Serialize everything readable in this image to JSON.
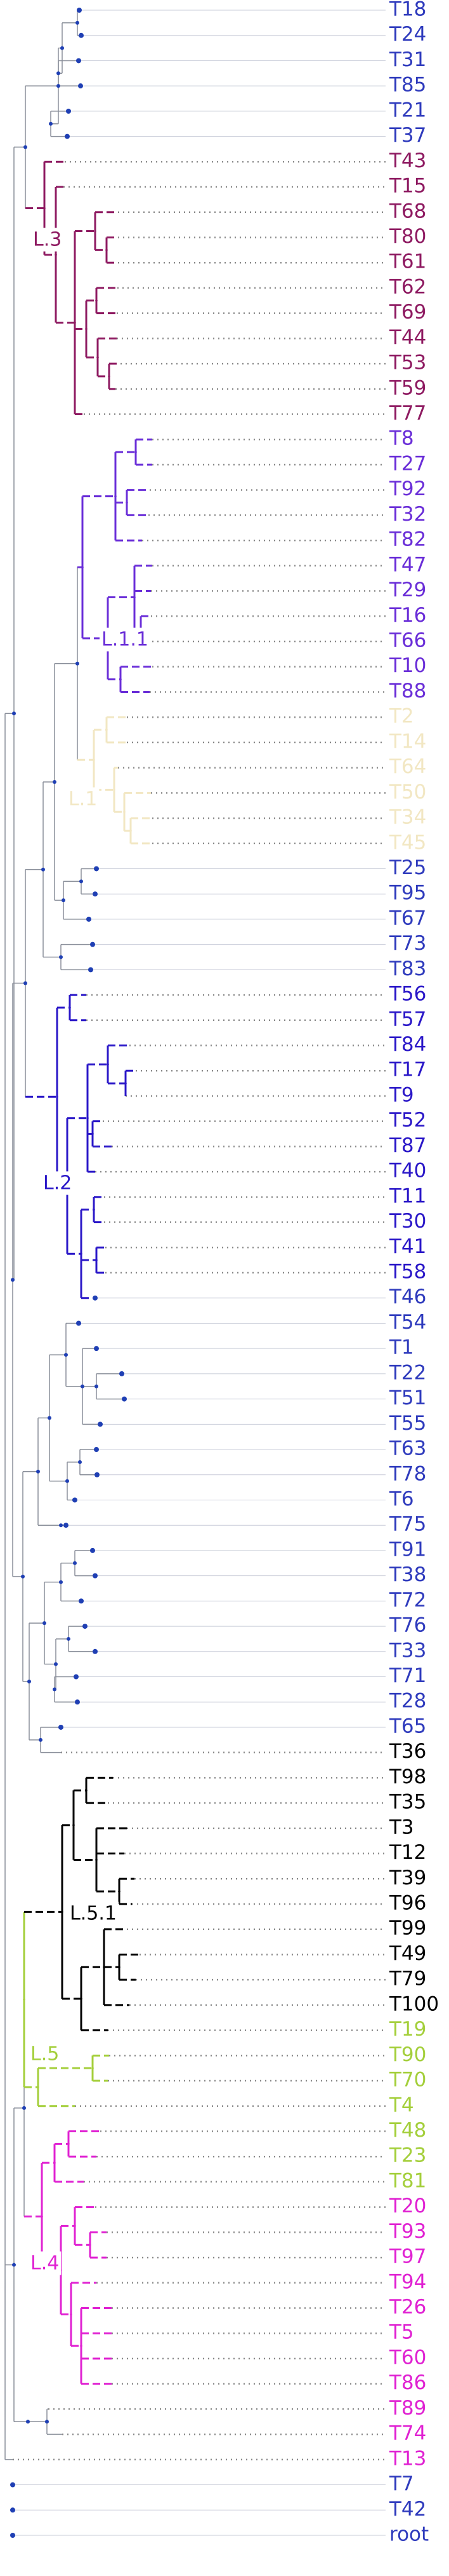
{
  "colors": {
    "default": "#2f3bbd",
    "L.3": "#8e1a61",
    "L.1.1": "#6a2ed8",
    "L.1": "#f2e7c3",
    "L.2": "#2a17c8",
    "L.5.1": "#000000",
    "L.5": "#a4cf3b",
    "L.4": "#e021d2",
    "node_dot": "#1f3fb4",
    "guide": "#c8ccd8",
    "stem": "#8a8f9a"
  },
  "clade_labels": [
    {
      "name": "L.3",
      "text": "L.3"
    },
    {
      "name": "L.1.1",
      "text": "L.1.1"
    },
    {
      "name": "L.1",
      "text": "L.1"
    },
    {
      "name": "L.2",
      "text": "L.2"
    },
    {
      "name": "L.5.1",
      "text": "L.5.1"
    },
    {
      "name": "L.5",
      "text": "L.5"
    },
    {
      "name": "L.4",
      "text": "L.4"
    }
  ],
  "tips": [
    {
      "label": "T18",
      "clade": "default"
    },
    {
      "label": "T24",
      "clade": "default"
    },
    {
      "label": "T31",
      "clade": "default"
    },
    {
      "label": "T85",
      "clade": "default"
    },
    {
      "label": "T21",
      "clade": "default"
    },
    {
      "label": "T37",
      "clade": "default"
    },
    {
      "label": "T43",
      "clade": "L.3"
    },
    {
      "label": "T15",
      "clade": "L.3"
    },
    {
      "label": "T68",
      "clade": "L.3"
    },
    {
      "label": "T80",
      "clade": "L.3"
    },
    {
      "label": "T61",
      "clade": "L.3"
    },
    {
      "label": "T62",
      "clade": "L.3"
    },
    {
      "label": "T69",
      "clade": "L.3"
    },
    {
      "label": "T44",
      "clade": "L.3"
    },
    {
      "label": "T53",
      "clade": "L.3"
    },
    {
      "label": "T59",
      "clade": "L.3"
    },
    {
      "label": "T77",
      "clade": "L.3"
    },
    {
      "label": "T8",
      "clade": "L.1.1"
    },
    {
      "label": "T27",
      "clade": "L.1.1"
    },
    {
      "label": "T92",
      "clade": "L.1.1"
    },
    {
      "label": "T32",
      "clade": "L.1.1"
    },
    {
      "label": "T82",
      "clade": "L.1.1"
    },
    {
      "label": "T47",
      "clade": "L.1.1"
    },
    {
      "label": "T29",
      "clade": "L.1.1"
    },
    {
      "label": "T16",
      "clade": "L.1.1"
    },
    {
      "label": "T66",
      "clade": "L.1.1"
    },
    {
      "label": "T10",
      "clade": "L.1.1"
    },
    {
      "label": "T88",
      "clade": "L.1.1"
    },
    {
      "label": "T2",
      "clade": "L.1"
    },
    {
      "label": "T14",
      "clade": "L.1"
    },
    {
      "label": "T64",
      "clade": "L.1"
    },
    {
      "label": "T50",
      "clade": "L.1"
    },
    {
      "label": "T34",
      "clade": "L.1"
    },
    {
      "label": "T45",
      "clade": "L.1"
    },
    {
      "label": "T25",
      "clade": "default"
    },
    {
      "label": "T95",
      "clade": "default"
    },
    {
      "label": "T67",
      "clade": "default"
    },
    {
      "label": "T73",
      "clade": "default"
    },
    {
      "label": "T83",
      "clade": "default"
    },
    {
      "label": "T56",
      "clade": "L.2"
    },
    {
      "label": "T57",
      "clade": "L.2"
    },
    {
      "label": "T84",
      "clade": "L.2"
    },
    {
      "label": "T17",
      "clade": "L.2"
    },
    {
      "label": "T9",
      "clade": "L.2"
    },
    {
      "label": "T52",
      "clade": "L.2"
    },
    {
      "label": "T87",
      "clade": "L.2"
    },
    {
      "label": "T40",
      "clade": "L.2"
    },
    {
      "label": "T11",
      "clade": "L.2"
    },
    {
      "label": "T30",
      "clade": "L.2"
    },
    {
      "label": "T41",
      "clade": "L.2"
    },
    {
      "label": "T58",
      "clade": "L.2"
    },
    {
      "label": "T46",
      "clade": "default"
    },
    {
      "label": "T54",
      "clade": "default"
    },
    {
      "label": "T1",
      "clade": "default"
    },
    {
      "label": "T22",
      "clade": "default"
    },
    {
      "label": "T51",
      "clade": "default"
    },
    {
      "label": "T55",
      "clade": "default"
    },
    {
      "label": "T63",
      "clade": "default"
    },
    {
      "label": "T78",
      "clade": "default"
    },
    {
      "label": "T6",
      "clade": "default"
    },
    {
      "label": "T75",
      "clade": "default"
    },
    {
      "label": "T91",
      "clade": "default"
    },
    {
      "label": "T38",
      "clade": "default"
    },
    {
      "label": "T72",
      "clade": "default"
    },
    {
      "label": "T76",
      "clade": "default"
    },
    {
      "label": "T33",
      "clade": "default"
    },
    {
      "label": "T71",
      "clade": "default"
    },
    {
      "label": "T28",
      "clade": "default"
    },
    {
      "label": "T65",
      "clade": "default"
    },
    {
      "label": "T36",
      "clade": "L.5.1"
    },
    {
      "label": "T98",
      "clade": "L.5.1"
    },
    {
      "label": "T35",
      "clade": "L.5.1"
    },
    {
      "label": "T3",
      "clade": "L.5.1"
    },
    {
      "label": "T12",
      "clade": "L.5.1"
    },
    {
      "label": "T39",
      "clade": "L.5.1"
    },
    {
      "label": "T96",
      "clade": "L.5.1"
    },
    {
      "label": "T99",
      "clade": "L.5.1"
    },
    {
      "label": "T49",
      "clade": "L.5.1"
    },
    {
      "label": "T79",
      "clade": "L.5.1"
    },
    {
      "label": "T100",
      "clade": "L.5.1"
    },
    {
      "label": "T19",
      "clade": "L.5"
    },
    {
      "label": "T90",
      "clade": "L.5"
    },
    {
      "label": "T70",
      "clade": "L.5"
    },
    {
      "label": "T4",
      "clade": "L.5"
    },
    {
      "label": "T48",
      "clade": "L.5"
    },
    {
      "label": "T23",
      "clade": "L.5"
    },
    {
      "label": "T81",
      "clade": "L.5"
    },
    {
      "label": "T20",
      "clade": "L.4"
    },
    {
      "label": "T93",
      "clade": "L.4"
    },
    {
      "label": "T97",
      "clade": "L.4"
    },
    {
      "label": "T94",
      "clade": "L.4"
    },
    {
      "label": "T26",
      "clade": "L.4"
    },
    {
      "label": "T5",
      "clade": "L.4"
    },
    {
      "label": "T60",
      "clade": "L.4"
    },
    {
      "label": "T86",
      "clade": "L.4"
    },
    {
      "label": "T89",
      "clade": "L.4"
    },
    {
      "label": "T74",
      "clade": "L.4"
    },
    {
      "label": "T13",
      "clade": "L.4"
    },
    {
      "label": "T7",
      "clade": "default"
    },
    {
      "label": "T42",
      "clade": "default"
    },
    {
      "label": "root",
      "clade": "default"
    }
  ]
}
